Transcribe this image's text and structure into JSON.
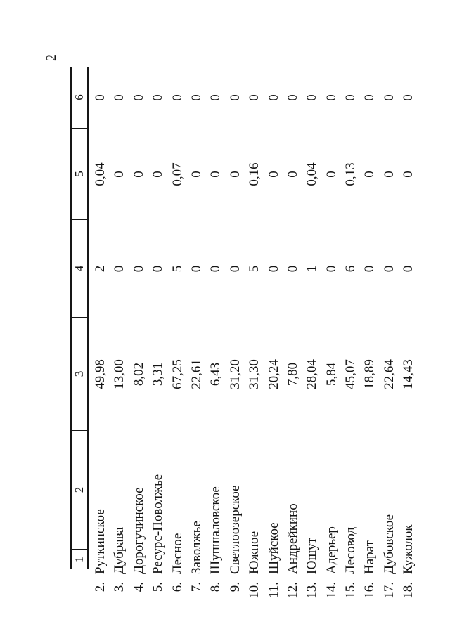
{
  "page_number": "2",
  "table": {
    "headers": [
      "1",
      "2",
      "3",
      "4",
      "5",
      "6"
    ],
    "rows": [
      {
        "num": "2.",
        "name": "Руткинское",
        "c3": "49,98",
        "c4": "2",
        "c5": "0,04",
        "c6": "0"
      },
      {
        "num": "3.",
        "name": "Дубрава",
        "c3": "13,00",
        "c4": "0",
        "c5": "0",
        "c6": "0"
      },
      {
        "num": "4.",
        "name": "Дорогучинское",
        "c3": "8,02",
        "c4": "0",
        "c5": "0",
        "c6": "0"
      },
      {
        "num": "5.",
        "name": "Ресурс-Поволжье",
        "c3": "3,31",
        "c4": "0",
        "c5": "0",
        "c6": "0"
      },
      {
        "num": "6.",
        "name": "Лесное",
        "c3": "67,25",
        "c4": "5",
        "c5": "0,07",
        "c6": "0"
      },
      {
        "num": "7.",
        "name": "Заволжье",
        "c3": "22,61",
        "c4": "0",
        "c5": "0",
        "c6": "0"
      },
      {
        "num": "8.",
        "name": "Шупшаловское",
        "c3": "6,43",
        "c4": "0",
        "c5": "0",
        "c6": "0"
      },
      {
        "num": "9.",
        "name": "Светлоозерское",
        "c3": "31,20",
        "c4": "0",
        "c5": "0",
        "c6": "0"
      },
      {
        "num": "10.",
        "name": "Южное",
        "c3": "31,30",
        "c4": "5",
        "c5": "0,16",
        "c6": "0"
      },
      {
        "num": "11.",
        "name": "Шуйское",
        "c3": "20,24",
        "c4": "0",
        "c5": "0",
        "c6": "0"
      },
      {
        "num": "12.",
        "name": "Андрейкино",
        "c3": "7,80",
        "c4": "0",
        "c5": "0",
        "c6": "0"
      },
      {
        "num": "13.",
        "name": "Юшут",
        "c3": "28,04",
        "c4": "1",
        "c5": "0,04",
        "c6": "0"
      },
      {
        "num": "14.",
        "name": "Адерьер",
        "c3": "5,84",
        "c4": "0",
        "c5": "0",
        "c6": "0"
      },
      {
        "num": "15.",
        "name": "Лесовод",
        "c3": "45,07",
        "c4": "6",
        "c5": "0,13",
        "c6": "0"
      },
      {
        "num": "16.",
        "name": "Нарат",
        "c3": "18,89",
        "c4": "0",
        "c5": "0",
        "c6": "0"
      },
      {
        "num": "17.",
        "name": "Дубовское",
        "c3": "22,64",
        "c4": "0",
        "c5": "0",
        "c6": "0"
      },
      {
        "num": "18.",
        "name": "Кужолок",
        "c3": "14,43",
        "c4": "0",
        "c5": "0",
        "c6": "0"
      }
    ]
  }
}
